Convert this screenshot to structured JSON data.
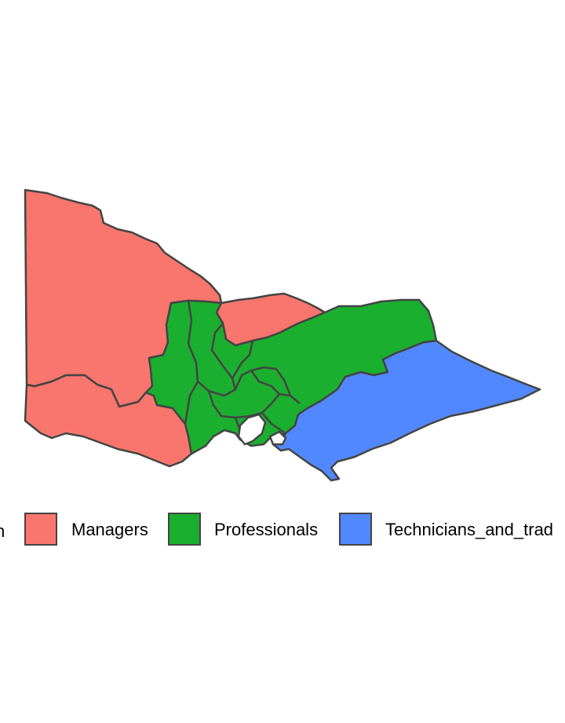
{
  "legend": {
    "title": "n",
    "items": [
      {
        "label": "Managers",
        "color": "#F8766D"
      },
      {
        "label": "Professionals",
        "color": "#1BAF2F"
      },
      {
        "label": "Technicians_and_trad",
        "color": "#5288FF"
      }
    ]
  },
  "colors": {
    "border": "#444444",
    "water": "#ffffff",
    "background": "#ffffff"
  }
}
